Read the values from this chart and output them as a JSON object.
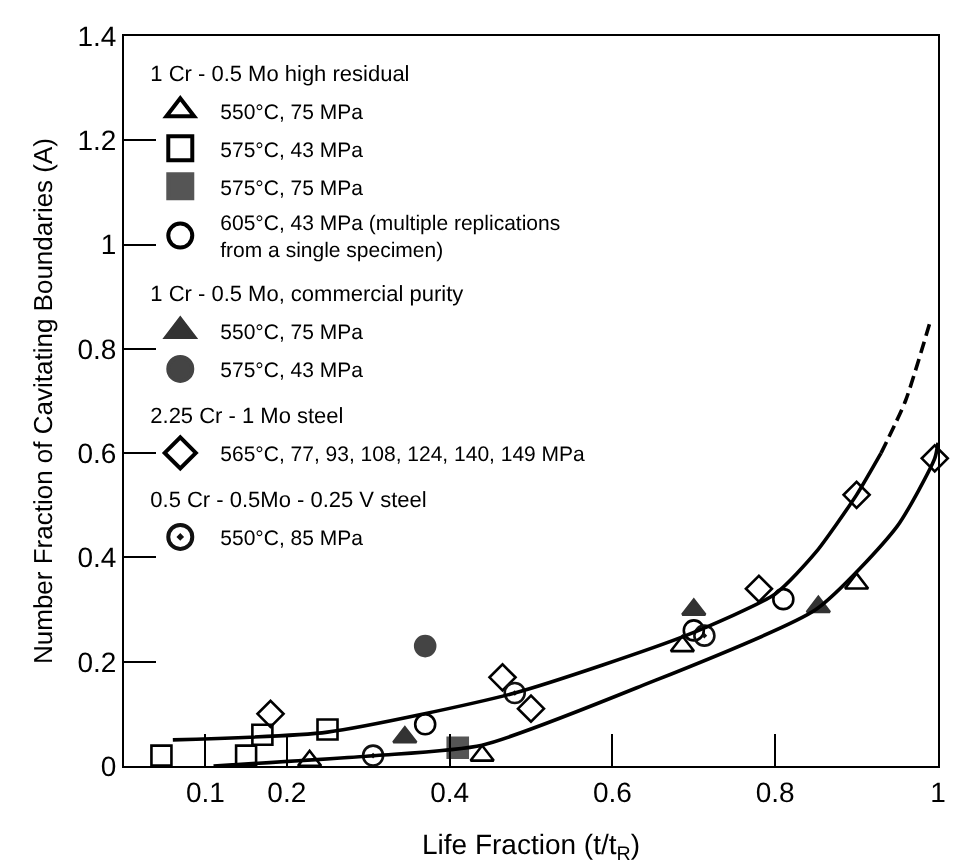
{
  "chart_data": {
    "type": "scatter",
    "xlabel": "Life Fraction (t/t$_{R}$)",
    "ylabel": "Number Fraction of Cavitating Boundaries (A)",
    "xlim": [
      0,
      1.0
    ],
    "xticks": [
      0.1,
      0.2,
      0.4,
      0.6,
      0.8,
      1.0
    ],
    "ylim": [
      0,
      1.4
    ],
    "yticks": [
      0,
      0.2,
      0.4,
      0.6,
      0.8,
      1.0,
      1.2,
      1.4
    ],
    "grid": false,
    "legend": "top left",
    "annotations": [
      "1 Cr - 0.5 Mo high residual",
      "1 Cr - 0.5 Mo, commercial purity",
      "2.25 Cr - 1 Mo steel",
      "0.5 Cr - 0.5Mo - 0.25 V steel"
    ],
    "series": [
      {
        "name": "550°C, 75 MPa",
        "marker": "triangle",
        "color": "#000000",
        "x": [
          0.228,
          0.44,
          0.686,
          0.9
        ],
        "values": [
          0.01,
          0.02,
          0.23,
          0.35
        ]
      },
      {
        "name": "575°C, 43 MPa",
        "marker": "square",
        "color": "#000000",
        "x": [
          0.046,
          0.15,
          0.17,
          0.25
        ],
        "values": [
          0.02,
          0.02,
          0.06,
          0.07
        ]
      },
      {
        "name": "575°C, 75 MPa",
        "marker": "square",
        "color": "#555555",
        "x": [
          0.41
        ],
        "values": [
          0.035
        ]
      },
      {
        "name": "605°C, 43 MPa (multiple replications\nfrom a single specimen)",
        "marker": "circle",
        "color": "#000000",
        "x": [
          0.37,
          0.7,
          0.81
        ],
        "values": [
          0.08,
          0.26,
          0.32
        ]
      },
      {
        "name": "550°C, 75 MPa",
        "marker": "triangle",
        "color": "#333333",
        "x": [
          0.345,
          0.7,
          0.853
        ],
        "values": [
          0.055,
          0.3,
          0.305
        ]
      },
      {
        "name": "575°C, 43 MPa",
        "marker": "circle",
        "color": "#444444",
        "x": [
          0.37
        ],
        "values": [
          0.23
        ]
      },
      {
        "name": "565°C, 77, 93, 108, 124, 140, 149 MPa",
        "marker": "diamond",
        "color": "#000000",
        "x": [
          0.18,
          0.465,
          0.5,
          0.78,
          0.9,
          0.996
        ],
        "values": [
          0.1,
          0.17,
          0.11,
          0.34,
          0.52,
          0.59
        ]
      },
      {
        "name": "550°C, 85 MPa",
        "marker": "circle",
        "color": "#111111",
        "x": [
          0.306,
          0.48,
          0.713
        ],
        "values": [
          0.02,
          0.14,
          0.25
        ]
      },
      {
        "type": "line",
        "marker": "none",
        "line_style": "solid",
        "color": "#000000",
        "x": [
          0.06,
          0.25,
          0.48,
          0.69,
          0.8,
          0.85,
          0.9,
          0.93
        ],
        "values": [
          0.05,
          0.065,
          0.14,
          0.25,
          0.33,
          0.41,
          0.52,
          0.6
        ]
      },
      {
        "type": "line",
        "marker": "none",
        "line_style": "dashed",
        "color": "#000000",
        "x": [
          0.93,
          0.96,
          0.99
        ],
        "values": [
          0.6,
          0.7,
          0.85
        ]
      },
      {
        "type": "line",
        "marker": "none",
        "line_style": "solid",
        "color": "#000000",
        "x": [
          0.11,
          0.31,
          0.44,
          0.63,
          0.85,
          0.95,
          0.996,
          1.0
        ],
        "values": [
          0.0,
          0.02,
          0.04,
          0.15,
          0.3,
          0.46,
          0.59,
          0.62
        ]
      }
    ]
  }
}
